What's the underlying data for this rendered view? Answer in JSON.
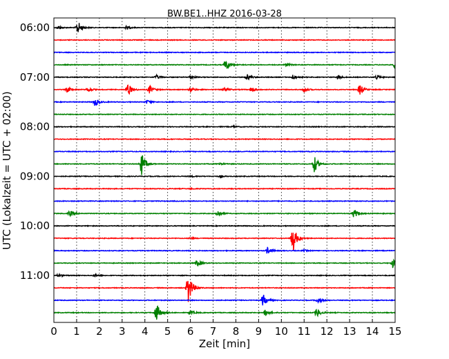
{
  "chart_data": {
    "type": "line",
    "title": "BW.BE1..HHZ 2016-03-28",
    "xlabel": "Zeit  [min]",
    "ylabel": "UTC (Lokalzeit = UTC + 02:00)",
    "xlim": [
      0,
      15
    ],
    "x_ticks": [
      "0",
      "1",
      "2",
      "3",
      "4",
      "5",
      "6",
      "7",
      "8",
      "9",
      "10",
      "11",
      "12",
      "13",
      "14",
      "15"
    ],
    "y_tick_labels": [
      "06:00",
      "07:00",
      "08:00",
      "09:00",
      "10:00",
      "11:00"
    ],
    "grid": "dotted vertical lines at each minute",
    "trace_interval_min": 15,
    "trace_color_cycle": [
      "#000000",
      "#ff0000",
      "#0000ff",
      "#008000"
    ],
    "traces": [
      {
        "start": "06:00",
        "events": [
          {
            "t": 0.2,
            "amp": 0.25
          },
          {
            "t": 1.05,
            "amp": 0.9
          },
          {
            "t": 3.2,
            "amp": 0.2
          }
        ]
      },
      {
        "start": "06:15",
        "events": []
      },
      {
        "start": "06:30",
        "events": []
      },
      {
        "start": "06:45",
        "events": [
          {
            "t": 7.55,
            "amp": 0.8
          },
          {
            "t": 10.2,
            "amp": 0.2
          },
          {
            "t": 15.0,
            "amp": 0.45
          }
        ]
      },
      {
        "start": "07:00",
        "events": [
          {
            "t": 4.5,
            "amp": 0.3
          },
          {
            "t": 6.0,
            "amp": 0.25
          },
          {
            "t": 8.5,
            "amp": 0.4
          },
          {
            "t": 10.5,
            "amp": 0.3
          },
          {
            "t": 12.5,
            "amp": 0.25
          },
          {
            "t": 14.2,
            "amp": 0.3
          }
        ]
      },
      {
        "start": "07:15",
        "events": [
          {
            "t": 0.6,
            "amp": 0.35
          },
          {
            "t": 1.5,
            "amp": 0.3
          },
          {
            "t": 3.25,
            "amp": 0.9
          },
          {
            "t": 4.2,
            "amp": 0.55
          },
          {
            "t": 6.0,
            "amp": 0.35
          },
          {
            "t": 7.5,
            "amp": 0.3
          },
          {
            "t": 8.7,
            "amp": 0.35
          },
          {
            "t": 11.0,
            "amp": 0.3
          },
          {
            "t": 13.45,
            "amp": 0.7
          }
        ]
      },
      {
        "start": "07:30",
        "events": [
          {
            "t": 1.8,
            "amp": 0.55
          },
          {
            "t": 4.1,
            "amp": 0.25
          }
        ]
      },
      {
        "start": "07:45",
        "events": []
      },
      {
        "start": "08:00",
        "events": [
          {
            "t": 7.9,
            "amp": 0.1
          }
        ]
      },
      {
        "start": "08:15",
        "events": []
      },
      {
        "start": "08:30",
        "events": []
      },
      {
        "start": "08:45",
        "events": [
          {
            "t": 3.85,
            "amp": 1.6
          },
          {
            "t": 7.3,
            "amp": 0.15
          },
          {
            "t": 11.45,
            "amp": 1.1
          }
        ]
      },
      {
        "start": "09:00",
        "events": [
          {
            "t": 6.0,
            "amp": 0.1
          },
          {
            "t": 7.3,
            "amp": 0.08
          }
        ]
      },
      {
        "start": "09:15",
        "events": [
          {
            "t": 6.0,
            "amp": 0.08
          }
        ]
      },
      {
        "start": "09:30",
        "events": []
      },
      {
        "start": "09:45",
        "events": [
          {
            "t": 0.7,
            "amp": 0.4
          },
          {
            "t": 7.2,
            "amp": 0.4
          },
          {
            "t": 13.2,
            "amp": 0.6
          }
        ]
      },
      {
        "start": "10:00",
        "events": []
      },
      {
        "start": "10:15",
        "events": [
          {
            "t": 6.0,
            "amp": 0.1
          },
          {
            "t": 10.5,
            "amp": 2.0
          }
        ]
      },
      {
        "start": "10:30",
        "events": [
          {
            "t": 9.4,
            "amp": 0.5
          },
          {
            "t": 11.0,
            "amp": 0.1
          }
        ]
      },
      {
        "start": "10:45",
        "events": [
          {
            "t": 6.3,
            "amp": 0.5
          },
          {
            "t": 14.9,
            "amp": 0.6
          }
        ]
      },
      {
        "start": "11:00",
        "events": [
          {
            "t": 0.2,
            "amp": 0.2
          },
          {
            "t": 1.8,
            "amp": 0.15
          }
        ]
      },
      {
        "start": "11:15",
        "events": [
          {
            "t": 5.9,
            "amp": 2.3
          }
        ]
      },
      {
        "start": "11:30",
        "events": [
          {
            "t": 9.2,
            "amp": 0.8
          },
          {
            "t": 11.6,
            "amp": 0.35
          }
        ]
      },
      {
        "start": "11:45",
        "events": [
          {
            "t": 4.5,
            "amp": 1.3
          },
          {
            "t": 6.0,
            "amp": 0.3
          },
          {
            "t": 9.3,
            "amp": 0.45
          },
          {
            "t": 11.55,
            "amp": 0.6
          }
        ]
      }
    ]
  }
}
